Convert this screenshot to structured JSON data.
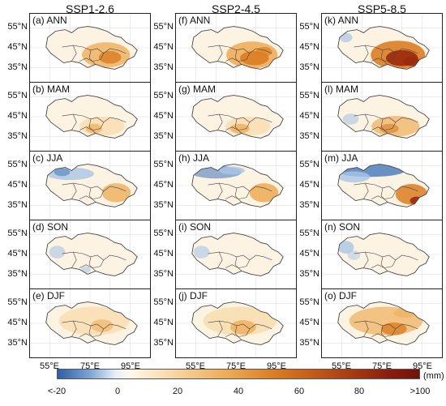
{
  "columns": [
    "SSP1-2.6",
    "SSP2-4.5",
    "SSP5-8.5"
  ],
  "panels": [
    [
      "(a) ANN",
      "(f) ANN",
      "(k) ANN"
    ],
    [
      "(b) MAM",
      "(g) MAM",
      "(l) MAM"
    ],
    [
      "(c) JJA",
      "(h) JJA",
      "(m) JJA"
    ],
    [
      "(d) SON",
      "(i) SON",
      "(n) SON"
    ],
    [
      "(e) DJF",
      "(j) DJF",
      "(o) DJF"
    ]
  ],
  "lat_ticks": [
    "55°N",
    "45°N",
    "35°N"
  ],
  "lon_ticks": [
    "55°E",
    "75°E",
    "95°E"
  ],
  "colorbar": {
    "ticks": [
      "<-20",
      "0",
      "20",
      "40",
      "60",
      "80",
      ">100"
    ],
    "unit": "(mm)",
    "colors": [
      "#2e5fa6",
      "#ffffff",
      "#eeae5a",
      "#731209"
    ]
  }
}
